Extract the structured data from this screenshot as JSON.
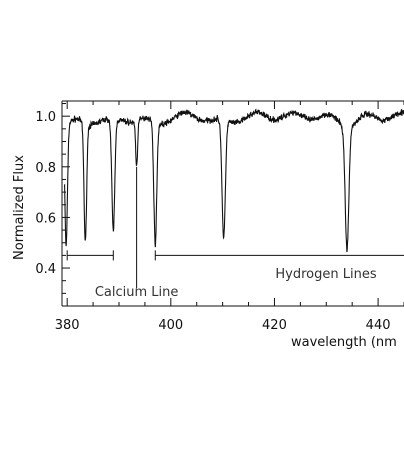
{
  "chart_data": {
    "type": "line",
    "title": "",
    "xlabel": "wavelength (nm",
    "ylabel": "Normalized Flux",
    "xlim": [
      379,
      445
    ],
    "ylim": [
      0.25,
      1.06
    ],
    "grid": false,
    "x_ticks": [
      380,
      400,
      420,
      440
    ],
    "y_ticks": [
      0.4,
      0.6,
      0.8,
      1.0
    ],
    "x_tick_labels": [
      "380",
      "400",
      "420",
      "440"
    ],
    "y_tick_labels": [
      "0.4",
      "0.6",
      "0.8",
      "1.0"
    ],
    "continuum": 1.0,
    "absorption_lines": [
      {
        "x": 379.8,
        "depth": 0.48,
        "width": 0.35
      },
      {
        "x": 383.5,
        "depth": 0.47,
        "width": 0.35
      },
      {
        "x": 388.9,
        "depth": 0.44,
        "width": 0.4
      },
      {
        "x": 393.4,
        "depth": 0.18,
        "width": 0.25
      },
      {
        "x": 397.0,
        "depth": 0.48,
        "width": 0.4
      },
      {
        "x": 410.2,
        "depth": 0.47,
        "width": 0.45
      },
      {
        "x": 434.0,
        "depth": 0.48,
        "width": 0.5
      }
    ],
    "annotations": [
      {
        "label": "Calcium Line",
        "x": 393.4
      },
      {
        "label": "Hydrogen Lines",
        "x_start": 397.0,
        "x_end": 445
      }
    ],
    "bracket_left": {
      "x_start": 380,
      "x_end": 388.9,
      "y": 0.45
    },
    "bracket_right": {
      "x_start": 397.0,
      "x_end": 445,
      "y": 0.45
    }
  }
}
